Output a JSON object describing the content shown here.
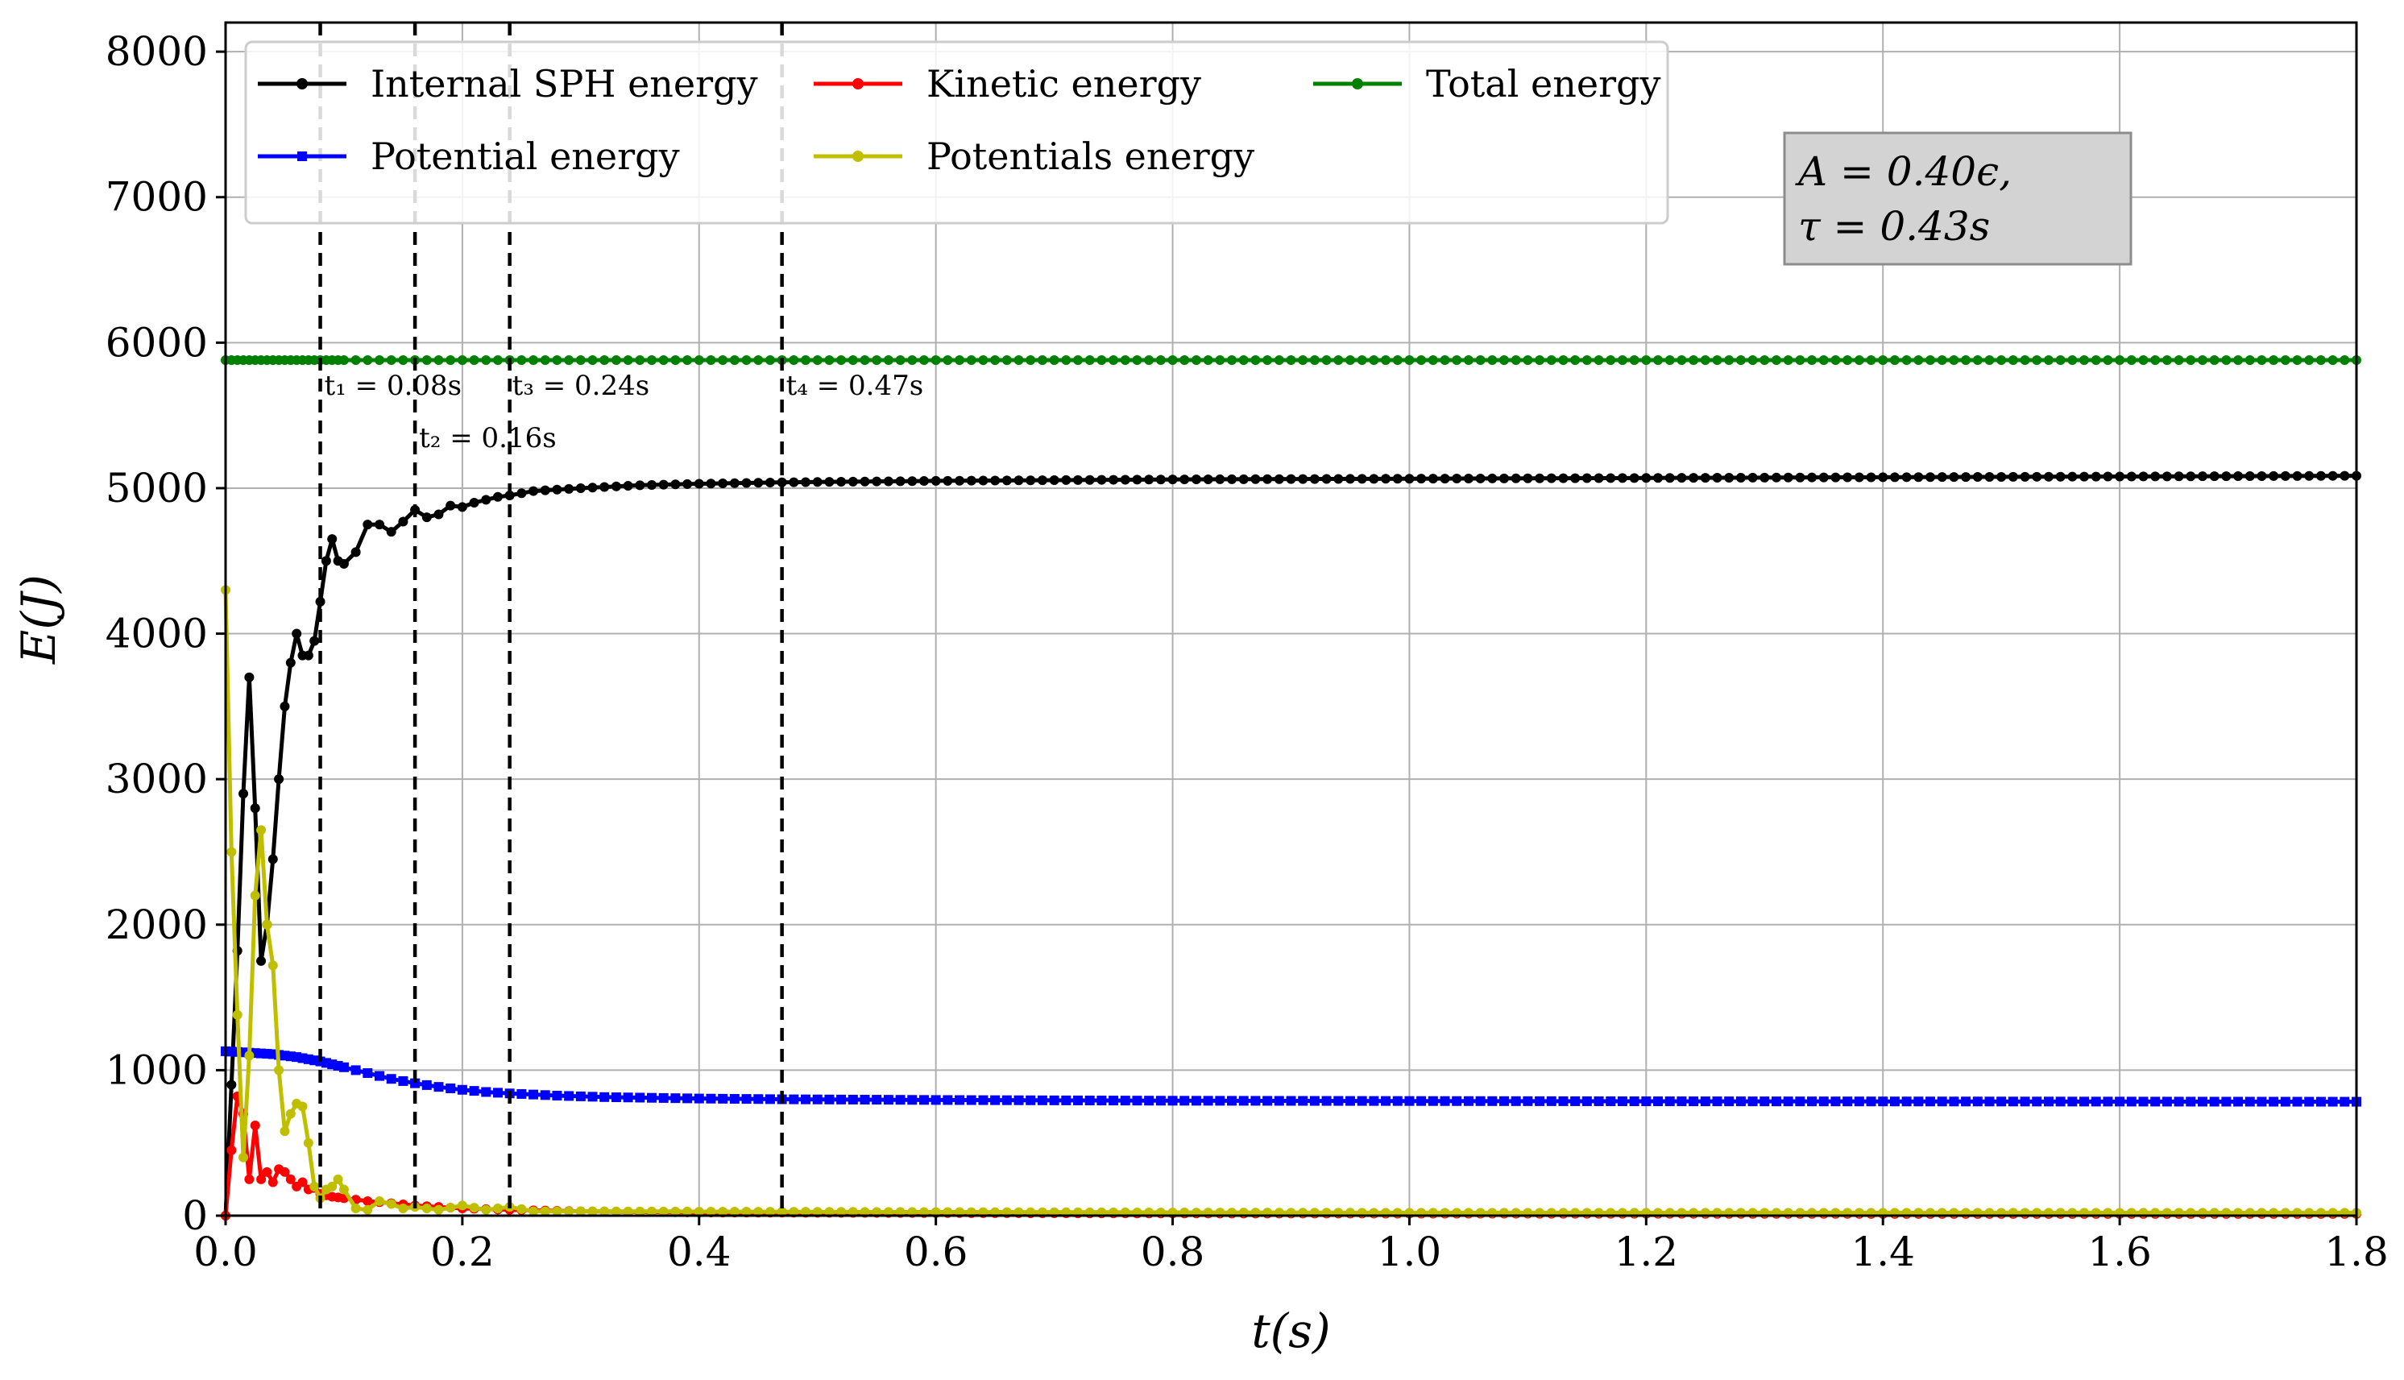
{
  "chart_data": {
    "type": "line",
    "xlabel": "t(s)",
    "ylabel": "E(J)",
    "xlim": [
      0.0,
      1.8
    ],
    "ylim": [
      0,
      8200
    ],
    "x_ticks": [
      "0.0",
      "0.2",
      "0.4",
      "0.6",
      "0.8",
      "1.0",
      "1.2",
      "1.4",
      "1.6",
      "1.8"
    ],
    "y_ticks": [
      "0",
      "1000",
      "2000",
      "3000",
      "4000",
      "5000",
      "6000",
      "7000",
      "8000"
    ],
    "grid": true,
    "legend_position": "top-left",
    "series": [
      {
        "name": "Internal SPH energy",
        "color": "#000000",
        "marker": "circle",
        "points": [
          [
            0.0,
            0
          ],
          [
            0.005,
            900
          ],
          [
            0.01,
            1820
          ],
          [
            0.015,
            2900
          ],
          [
            0.02,
            3700
          ],
          [
            0.025,
            2800
          ],
          [
            0.03,
            1750
          ],
          [
            0.035,
            2000
          ],
          [
            0.04,
            2450
          ],
          [
            0.045,
            3000
          ],
          [
            0.05,
            3500
          ],
          [
            0.055,
            3800
          ],
          [
            0.06,
            4000
          ],
          [
            0.065,
            3850
          ],
          [
            0.07,
            3850
          ],
          [
            0.075,
            3950
          ],
          [
            0.08,
            4220
          ],
          [
            0.085,
            4500
          ],
          [
            0.09,
            4650
          ],
          [
            0.095,
            4500
          ],
          [
            0.1,
            4480
          ],
          [
            0.11,
            4560
          ],
          [
            0.12,
            4750
          ],
          [
            0.13,
            4750
          ],
          [
            0.14,
            4700
          ],
          [
            0.15,
            4770
          ],
          [
            0.16,
            4850
          ],
          [
            0.17,
            4800
          ],
          [
            0.18,
            4820
          ],
          [
            0.19,
            4880
          ],
          [
            0.2,
            4870
          ],
          [
            0.21,
            4900
          ],
          [
            0.22,
            4920
          ],
          [
            0.23,
            4940
          ],
          [
            0.24,
            4950
          ],
          [
            0.26,
            4980
          ],
          [
            0.28,
            4990
          ],
          [
            0.3,
            5000
          ],
          [
            0.35,
            5020
          ],
          [
            0.4,
            5030
          ],
          [
            0.47,
            5040
          ],
          [
            0.6,
            5050
          ],
          [
            0.8,
            5060
          ],
          [
            1.0,
            5065
          ],
          [
            1.2,
            5070
          ],
          [
            1.4,
            5075
          ],
          [
            1.6,
            5080
          ],
          [
            1.8,
            5085
          ]
        ]
      },
      {
        "name": "Potential energy",
        "color": "#0000ff",
        "marker": "square",
        "points": [
          [
            0.0,
            1130
          ],
          [
            0.02,
            1120
          ],
          [
            0.04,
            1110
          ],
          [
            0.06,
            1090
          ],
          [
            0.08,
            1060
          ],
          [
            0.1,
            1020
          ],
          [
            0.12,
            980
          ],
          [
            0.14,
            940
          ],
          [
            0.16,
            910
          ],
          [
            0.18,
            885
          ],
          [
            0.2,
            865
          ],
          [
            0.22,
            850
          ],
          [
            0.24,
            840
          ],
          [
            0.28,
            825
          ],
          [
            0.32,
            815
          ],
          [
            0.4,
            805
          ],
          [
            0.47,
            800
          ],
          [
            0.6,
            795
          ],
          [
            0.8,
            790
          ],
          [
            1.0,
            788
          ],
          [
            1.2,
            786
          ],
          [
            1.4,
            785
          ],
          [
            1.6,
            784
          ],
          [
            1.8,
            783
          ]
        ]
      },
      {
        "name": "Kinetic energy",
        "color": "#ff0000",
        "marker": "circle",
        "points": [
          [
            0.0,
            0
          ],
          [
            0.005,
            450
          ],
          [
            0.01,
            820
          ],
          [
            0.015,
            700
          ],
          [
            0.02,
            250
          ],
          [
            0.025,
            620
          ],
          [
            0.03,
            250
          ],
          [
            0.035,
            300
          ],
          [
            0.04,
            230
          ],
          [
            0.045,
            320
          ],
          [
            0.05,
            300
          ],
          [
            0.055,
            250
          ],
          [
            0.06,
            200
          ],
          [
            0.065,
            230
          ],
          [
            0.07,
            180
          ],
          [
            0.075,
            190
          ],
          [
            0.08,
            150
          ],
          [
            0.09,
            130
          ],
          [
            0.1,
            120
          ],
          [
            0.12,
            100
          ],
          [
            0.14,
            85
          ],
          [
            0.16,
            70
          ],
          [
            0.18,
            60
          ],
          [
            0.2,
            50
          ],
          [
            0.24,
            40
          ],
          [
            0.3,
            30
          ],
          [
            0.4,
            22
          ],
          [
            0.6,
            18
          ],
          [
            0.8,
            15
          ],
          [
            1.0,
            14
          ],
          [
            1.2,
            13
          ],
          [
            1.4,
            12
          ],
          [
            1.6,
            12
          ],
          [
            1.8,
            12
          ]
        ]
      },
      {
        "name": "Potentials energy",
        "color": "#bfbf00",
        "marker": "circle",
        "points": [
          [
            0.0,
            4300
          ],
          [
            0.005,
            2500
          ],
          [
            0.01,
            1380
          ],
          [
            0.015,
            400
          ],
          [
            0.02,
            1100
          ],
          [
            0.025,
            2200
          ],
          [
            0.03,
            2650
          ],
          [
            0.035,
            2000
          ],
          [
            0.04,
            1720
          ],
          [
            0.045,
            1000
          ],
          [
            0.05,
            580
          ],
          [
            0.055,
            700
          ],
          [
            0.06,
            770
          ],
          [
            0.065,
            750
          ],
          [
            0.07,
            500
          ],
          [
            0.075,
            200
          ],
          [
            0.08,
            120
          ],
          [
            0.085,
            180
          ],
          [
            0.09,
            200
          ],
          [
            0.095,
            250
          ],
          [
            0.1,
            180
          ],
          [
            0.11,
            50
          ],
          [
            0.12,
            40
          ],
          [
            0.13,
            100
          ],
          [
            0.14,
            80
          ],
          [
            0.15,
            50
          ],
          [
            0.16,
            60
          ],
          [
            0.18,
            40
          ],
          [
            0.2,
            70
          ],
          [
            0.22,
            40
          ],
          [
            0.24,
            60
          ],
          [
            0.26,
            30
          ],
          [
            0.3,
            30
          ],
          [
            0.4,
            28
          ],
          [
            0.6,
            25
          ],
          [
            0.8,
            22
          ],
          [
            1.0,
            20
          ],
          [
            1.2,
            20
          ],
          [
            1.4,
            20
          ],
          [
            1.6,
            20
          ],
          [
            1.8,
            20
          ]
        ]
      },
      {
        "name": "Total energy",
        "color": "#008000",
        "marker": "circle",
        "points": [
          [
            0.0,
            5880
          ],
          [
            1.8,
            5880
          ]
        ]
      }
    ],
    "vlines": [
      {
        "x": 0.08,
        "label": "t₁ = 0.08s"
      },
      {
        "x": 0.16,
        "label": "t₂ = 0.16s"
      },
      {
        "x": 0.24,
        "label": "t₃ = 0.24s"
      },
      {
        "x": 0.47,
        "label": "t₄ = 0.47s"
      }
    ],
    "annotation_box": {
      "line1": "A = 0.40ϵ,",
      "line2": "τ = 0.43s"
    }
  }
}
